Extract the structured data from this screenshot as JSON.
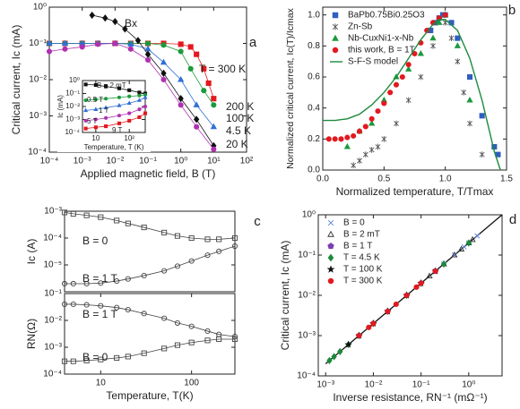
{
  "chart_data": [
    {
      "type": "scatter",
      "panel": "a",
      "xscale": "log",
      "yscale": "log",
      "legend": false,
      "xlabel": "Applied magnetic field, B (T)",
      "ylabel": "Critical current, Ic (mA)",
      "xlim": [
        0.0001,
        100
      ],
      "ylim": [
        0.0001,
        1
      ],
      "xticks": [
        {
          "value": 0.0001,
          "label": "10⁻⁴"
        },
        {
          "value": 0.001,
          "label": "10⁻³"
        },
        {
          "value": 0.01,
          "label": "10⁻²"
        },
        {
          "value": 0.1,
          "label": "10⁻¹"
        },
        {
          "value": 1,
          "label": "10⁰"
        },
        {
          "value": 10,
          "label": "10¹"
        },
        {
          "value": 100,
          "label": "10²"
        }
      ],
      "yticks": [
        {
          "value": 0.0001,
          "label": "10⁻⁴"
        },
        {
          "value": 0.001,
          "label": "10⁻³"
        },
        {
          "value": 0.01,
          "label": "10⁻²"
        },
        {
          "value": 0.1,
          "label": "10⁻¹"
        },
        {
          "value": 1,
          "label": "10⁰"
        }
      ],
      "annotations": [
        "Bx"
      ],
      "series": [
        {
          "name": "T = 300 K",
          "color": "#e3191f",
          "marker": "square",
          "line": true,
          "x": [
            0.0001,
            0.0003,
            0.001,
            0.003,
            0.01,
            0.03,
            0.1,
            0.3,
            1,
            2,
            3,
            5,
            7,
            10
          ],
          "y": [
            0.1,
            0.1,
            0.1,
            0.1,
            0.1,
            0.1,
            0.1,
            0.1,
            0.095,
            0.08,
            0.05,
            0.02,
            0.008,
            0.003
          ]
        },
        {
          "name": "200 K",
          "color": "#1b9a3c",
          "marker": "circle",
          "line": true,
          "x": [
            0.0001,
            0.0003,
            0.001,
            0.003,
            0.01,
            0.03,
            0.1,
            0.3,
            1,
            2,
            5,
            10
          ],
          "y": [
            0.1,
            0.1,
            0.1,
            0.1,
            0.1,
            0.1,
            0.1,
            0.09,
            0.06,
            0.02,
            0.005,
            0.002
          ]
        },
        {
          "name": "100 K",
          "color": "#2f6fd6",
          "marker": "triangle",
          "line": true,
          "x": [
            0.0001,
            0.0003,
            0.001,
            0.003,
            0.01,
            0.03,
            0.1,
            0.3,
            1,
            3,
            10
          ],
          "y": [
            0.1,
            0.1,
            0.1,
            0.1,
            0.1,
            0.095,
            0.07,
            0.03,
            0.01,
            0.002,
            0.0005
          ]
        },
        {
          "name": "4.5 K",
          "color": "#111111",
          "marker": "diamond",
          "line": true,
          "x": [
            0.002,
            0.005,
            0.01,
            0.02,
            0.05,
            0.1,
            0.3,
            1,
            3,
            10
          ],
          "y": [
            0.6,
            0.5,
            0.4,
            0.25,
            0.12,
            0.05,
            0.015,
            0.003,
            0.0008,
            0.00015
          ]
        },
        {
          "name": "20 K",
          "color": "#b030b0",
          "marker": "circle",
          "line": true,
          "x": [
            0.0001,
            0.0003,
            0.001,
            0.003,
            0.01,
            0.03,
            0.1,
            0.3,
            1,
            3,
            10
          ],
          "y": [
            0.06,
            0.07,
            0.08,
            0.095,
            0.1,
            0.07,
            0.035,
            0.01,
            0.002,
            0.0005,
            0.00012
          ]
        }
      ]
    },
    {
      "type": "scatter",
      "xscale": "log",
      "yscale": "log",
      "legend": false,
      "xlabel": "Temperature, T (K)",
      "ylabel": "Ic (mA)",
      "xlim": [
        4,
        300
      ],
      "ylim": [
        0.0001,
        1
      ],
      "xticks": [
        10,
        {
          "value": 100,
          "label": "10²"
        }
      ],
      "yticks": [
        {
          "value": 0.0001,
          "label": "10⁻⁴"
        },
        {
          "value": 0.001,
          "label": "10⁻³"
        },
        {
          "value": 0.01,
          "label": "10⁻²"
        },
        {
          "value": 0.1,
          "label": "10⁻¹"
        },
        {
          "value": 1,
          "label": "10⁰"
        }
      ],
      "series": [
        {
          "name": "B = 2 mT",
          "color": "#111111",
          "marker": "square",
          "line": true,
          "x": [
            5,
            10,
            20,
            50,
            100,
            200,
            300
          ],
          "y": [
            0.5,
            0.45,
            0.35,
            0.25,
            0.18,
            0.12,
            0.1
          ]
        },
        {
          "name": "0.5 T",
          "color": "#1b9a3c",
          "marker": "circle",
          "line": true,
          "x": [
            5,
            10,
            20,
            50,
            100,
            200,
            300
          ],
          "y": [
            0.03,
            0.035,
            0.04,
            0.05,
            0.06,
            0.07,
            0.08
          ]
        },
        {
          "name": "1 T",
          "color": "#2f6fd6",
          "marker": "triangle",
          "line": true,
          "x": [
            5,
            10,
            20,
            50,
            100,
            200,
            300
          ],
          "y": [
            0.005,
            0.006,
            0.008,
            0.012,
            0.018,
            0.03,
            0.05
          ]
        },
        {
          "name": "5 T",
          "color": "#b030b0",
          "marker": "circle",
          "line": true,
          "x": [
            5,
            10,
            20,
            50,
            100,
            200,
            300
          ],
          "y": [
            0.0008,
            0.001,
            0.0013,
            0.002,
            0.003,
            0.006,
            0.01
          ]
        },
        {
          "name": "9 T",
          "color": "#e3191f",
          "marker": "square",
          "line": true,
          "x": [
            5,
            10,
            20,
            50,
            100,
            200,
            300
          ],
          "y": [
            0.0002,
            0.00025,
            0.0003,
            0.0005,
            0.0008,
            0.0015,
            0.003
          ]
        }
      ]
    },
    {
      "type": "scatter",
      "panel": "b",
      "xscale": "linear",
      "yscale": "linear",
      "legend": "upper left",
      "xlabel": "Normalized temperature, T/Tmax",
      "ylabel": "Normalized critical current, Ic(T)/Icmax",
      "xlim": [
        0,
        1.5
      ],
      "ylim": [
        0,
        1.05
      ],
      "xticks": [
        {
          "value": 0,
          "label": "0.0"
        },
        {
          "value": 0.5,
          "label": "0.5"
        },
        {
          "value": 1,
          "label": "1.0"
        },
        1.5
      ],
      "yticks": [
        {
          "value": 0,
          "label": "0.0"
        },
        0.2,
        0.4,
        0.6,
        0.8,
        {
          "value": 1,
          "label": "1.0"
        }
      ],
      "series": [
        {
          "name": "BaPb0.75Bi0.25O3",
          "color": "#2f5fc0",
          "marker": "square",
          "x": [
            0.88,
            0.92,
            0.95,
            0.98,
            1.0,
            1.05,
            1.1,
            1.2,
            1.3,
            1.4,
            1.43
          ],
          "y": [
            0.9,
            0.95,
            0.98,
            1.0,
            1.0,
            0.95,
            0.85,
            0.6,
            0.35,
            0.15,
            0.1
          ]
        },
        {
          "name": "Zn-Sb",
          "color": "#555555",
          "marker": "asterisk",
          "x": [
            0.25,
            0.3,
            0.35,
            0.4,
            0.45,
            0.5,
            0.6,
            0.7,
            0.8,
            0.9,
            1.0,
            1.05,
            1.1,
            1.15,
            1.2,
            1.3
          ],
          "y": [
            0.03,
            0.06,
            0.1,
            0.13,
            0.15,
            0.2,
            0.3,
            0.45,
            0.6,
            0.8,
            0.95,
            0.85,
            0.7,
            0.5,
            0.3,
            0.1
          ]
        },
        {
          "name": "Nb-CuxNi1-x-Nb",
          "color": "#1b9a3c",
          "marker": "triangle",
          "x": [
            0.2,
            0.3,
            0.4,
            0.5,
            0.6,
            0.7,
            0.8,
            0.9,
            0.95,
            1.0,
            1.1,
            1.2
          ],
          "y": [
            0.15,
            0.25,
            0.3,
            0.45,
            0.6,
            0.65,
            0.75,
            0.85,
            0.95,
            1.0,
            0.8,
            0.45
          ]
        },
        {
          "name": "this work, B = 1T",
          "color": "#e3191f",
          "marker": "circle",
          "x": [
            0.05,
            0.1,
            0.15,
            0.2,
            0.25,
            0.3,
            0.35,
            0.4,
            0.45,
            0.5,
            0.55,
            0.6,
            0.65,
            0.7,
            0.75,
            0.8,
            0.85,
            0.9,
            0.95,
            1.0
          ],
          "y": [
            0.2,
            0.2,
            0.2,
            0.21,
            0.22,
            0.25,
            0.28,
            0.33,
            0.38,
            0.43,
            0.5,
            0.55,
            0.6,
            0.68,
            0.75,
            0.82,
            0.9,
            0.95,
            0.98,
            1.0
          ]
        },
        {
          "name": "S-F-S model",
          "color": "#1b8a3c",
          "line": true,
          "x": [
            0,
            0.1,
            0.2,
            0.3,
            0.4,
            0.5,
            0.6,
            0.7,
            0.8,
            0.9,
            0.95,
            1.0,
            1.1,
            1.2,
            1.3,
            1.4,
            1.45
          ],
          "y": [
            0.32,
            0.32,
            0.33,
            0.36,
            0.42,
            0.5,
            0.6,
            0.72,
            0.84,
            0.94,
            0.97,
            0.97,
            0.9,
            0.72,
            0.45,
            0.12,
            0
          ]
        }
      ]
    },
    {
      "type": "scatter",
      "panel": "c",
      "xscale": "log",
      "yscale": "log",
      "legend": false,
      "ylabel": "Ic (A)",
      "xlim": [
        4,
        300
      ],
      "ylim": [
        1e-06,
        0.001
      ],
      "yticks": [
        {
          "value": 1e-05,
          "label": "10⁻⁵"
        },
        {
          "value": 0.0001,
          "label": "10⁻⁴"
        },
        {
          "value": 0.001,
          "label": "10⁻³"
        }
      ],
      "series": [
        {
          "name": "B = 0",
          "color": "#444444",
          "marker": "square",
          "open": true,
          "line": true,
          "x": [
            4,
            5,
            7,
            10,
            15,
            20,
            30,
            50,
            70,
            100,
            150,
            200,
            300
          ],
          "y": [
            0.0009,
            0.0008,
            0.0007,
            0.0006,
            0.00045,
            0.00035,
            0.00025,
            0.00016,
            0.00012,
            0.0001,
            9e-05,
            9e-05,
            0.0001
          ]
        },
        {
          "name": "B = 1 T",
          "color": "#444444",
          "marker": "circle",
          "open": true,
          "line": true,
          "x": [
            4,
            5,
            7,
            10,
            15,
            20,
            30,
            50,
            70,
            100,
            150,
            200,
            300
          ],
          "y": [
            2e-06,
            2e-06,
            2e-06,
            2.1e-06,
            2.5e-06,
            3e-06,
            4e-06,
            6e-06,
            9e-06,
            1.4e-05,
            2.3e-05,
            3.2e-05,
            5e-05
          ]
        }
      ]
    },
    {
      "type": "scatter",
      "xscale": "log",
      "yscale": "log",
      "legend": false,
      "xlabel": "Temperature, T(K)",
      "ylabel": "RN(Ω)",
      "xlim": [
        4,
        300
      ],
      "ylim": [
        0.0001,
        0.1
      ],
      "xticks": [
        10,
        100
      ],
      "yticks": [
        {
          "value": 0.0001,
          "label": "10⁻⁴"
        },
        {
          "value": 0.001,
          "label": "10⁻³"
        },
        {
          "value": 0.01,
          "label": "10⁻²"
        },
        {
          "value": 0.1,
          "label": "10⁻¹"
        }
      ],
      "series": [
        {
          "name": "B = 1 T",
          "color": "#444444",
          "marker": "circle",
          "open": true,
          "line": true,
          "x": [
            4,
            5,
            7,
            10,
            15,
            20,
            30,
            50,
            70,
            100,
            150,
            200,
            300
          ],
          "y": [
            0.04,
            0.04,
            0.038,
            0.035,
            0.03,
            0.025,
            0.018,
            0.012,
            0.008,
            0.006,
            0.004,
            0.003,
            0.0025
          ]
        },
        {
          "name": "B = 0",
          "color": "#444444",
          "marker": "square",
          "open": true,
          "line": true,
          "x": [
            4,
            5,
            7,
            10,
            15,
            20,
            30,
            50,
            70,
            100,
            150,
            200,
            300
          ],
          "y": [
            0.0003,
            0.0003,
            0.00032,
            0.00035,
            0.0004,
            0.00045,
            0.0006,
            0.0009,
            0.0012,
            0.0015,
            0.0018,
            0.002,
            0.002
          ]
        }
      ]
    },
    {
      "type": "scatter",
      "panel": "d",
      "xscale": "log",
      "yscale": "log",
      "legend": "upper left",
      "xlabel": "Inverse resistance, RN⁻¹ (mΩ⁻¹)",
      "ylabel": "Critical current, Ic (mA)",
      "xlim": [
        0.0007,
        5
      ],
      "ylim": [
        0.0001,
        1
      ],
      "xticks": [
        {
          "value": 0.001,
          "label": "10⁻³"
        },
        {
          "value": 0.01,
          "label": "10⁻²"
        },
        {
          "value": 0.1,
          "label": "10⁻¹"
        },
        {
          "value": 1,
          "label": "10⁰"
        }
      ],
      "yticks": [
        {
          "value": 0.0001,
          "label": "10⁻⁴"
        },
        {
          "value": 0.001,
          "label": "10⁻³"
        },
        {
          "value": 0.01,
          "label": "10⁻²"
        },
        {
          "value": 0.1,
          "label": "10⁻¹"
        },
        {
          "value": 1,
          "label": "10⁰"
        }
      ],
      "fit": {
        "color": "#111111",
        "x": [
          0.001,
          5
        ],
        "y": [
          0.0002,
          1
        ]
      },
      "series": [
        {
          "name": "B = 0",
          "color": "#5b7fe0",
          "marker": "cross",
          "x": [
            0.2,
            0.3,
            0.5,
            0.8,
            1,
            1.5
          ],
          "y": [
            0.04,
            0.06,
            0.1,
            0.16,
            0.2,
            0.3
          ]
        },
        {
          "name": "B = 2 mT",
          "color": "#333333",
          "marker": "triangle",
          "open": true,
          "x": [
            0.15,
            0.3,
            0.5,
            0.7,
            1,
            1.2
          ],
          "y": [
            0.03,
            0.06,
            0.1,
            0.14,
            0.2,
            0.24
          ]
        },
        {
          "name": "B = 1 T",
          "color": "#7a3fb0",
          "marker": "pentagon",
          "x": [
            0.005,
            0.01,
            0.02,
            0.05,
            0.1,
            0.2
          ],
          "y": [
            0.001,
            0.002,
            0.004,
            0.01,
            0.02,
            0.04
          ]
        },
        {
          "name": "T = 4.5 K",
          "color": "#1b8a3c",
          "marker": "diamond",
          "x": [
            0.0012,
            0.0015,
            0.002,
            0.003,
            0.005,
            0.01,
            0.02,
            0.05,
            0.1,
            0.3,
            1
          ],
          "y": [
            0.00024,
            0.0003,
            0.0004,
            0.0006,
            0.001,
            0.002,
            0.004,
            0.01,
            0.02,
            0.06,
            0.2
          ]
        },
        {
          "name": "T = 100 K",
          "color": "#111111",
          "marker": "star",
          "x": [
            0.003,
            0.005,
            0.01,
            0.02,
            0.05,
            0.1,
            0.2
          ],
          "y": [
            0.0006,
            0.001,
            0.002,
            0.004,
            0.01,
            0.02,
            0.04
          ]
        },
        {
          "name": "T = 300 K",
          "color": "#e3191f",
          "marker": "circle",
          "x": [
            0.005,
            0.008,
            0.01,
            0.02,
            0.03,
            0.05,
            0.08,
            0.1,
            0.2
          ],
          "y": [
            0.001,
            0.0016,
            0.002,
            0.004,
            0.006,
            0.01,
            0.016,
            0.02,
            0.04
          ]
        }
      ]
    }
  ]
}
